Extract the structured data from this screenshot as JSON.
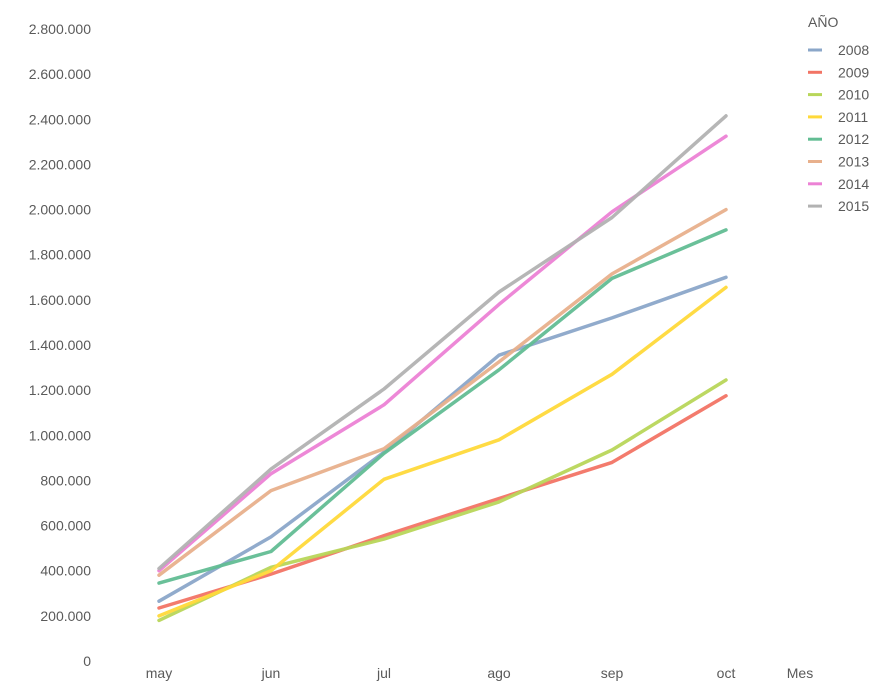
{
  "chart_data": {
    "type": "line",
    "title": "",
    "xlabel": "Mes",
    "ylabel": "",
    "categories": [
      "may",
      "jun",
      "jul",
      "ago",
      "sep",
      "oct"
    ],
    "ylim": [
      0,
      2800000
    ],
    "yticks": [
      0,
      200000,
      400000,
      600000,
      800000,
      1000000,
      1200000,
      1400000,
      1600000,
      1800000,
      2000000,
      2200000,
      2400000,
      2600000,
      2800000
    ],
    "ytick_labels": [
      "0",
      "200.000",
      "400.000",
      "600.000",
      "800.000",
      "1.000.000",
      "1.200.000",
      "1.400.000",
      "1.600.000",
      "1.800.000",
      "2.000.000",
      "2.200.000",
      "2.400.000",
      "2.600.000",
      "2.800.000"
    ],
    "grid": false,
    "legend_title": "AÑO",
    "legend_position": "top-right",
    "series": [
      {
        "name": "2008",
        "color": "#8ba7c9",
        "values": [
          265000,
          550000,
          925000,
          1355000,
          1520000,
          1700000
        ]
      },
      {
        "name": "2009",
        "color": "#f27465",
        "values": [
          235000,
          385000,
          555000,
          720000,
          880000,
          1175000
        ]
      },
      {
        "name": "2010",
        "color": "#b8d65a",
        "values": [
          180000,
          415000,
          540000,
          705000,
          935000,
          1245000
        ]
      },
      {
        "name": "2011",
        "color": "#ffd93a",
        "values": [
          200000,
          400000,
          805000,
          980000,
          1270000,
          1655000
        ]
      },
      {
        "name": "2012",
        "color": "#62bd93",
        "values": [
          345000,
          485000,
          920000,
          1290000,
          1695000,
          1910000
        ]
      },
      {
        "name": "2013",
        "color": "#e8b08c",
        "values": [
          380000,
          755000,
          940000,
          1325000,
          1715000,
          2000000
        ]
      },
      {
        "name": "2014",
        "color": "#ec82d5",
        "values": [
          400000,
          830000,
          1135000,
          1580000,
          1990000,
          2325000
        ]
      },
      {
        "name": "2015",
        "color": "#b2b2b2",
        "values": [
          410000,
          850000,
          1205000,
          1635000,
          1965000,
          2415000
        ]
      }
    ]
  }
}
